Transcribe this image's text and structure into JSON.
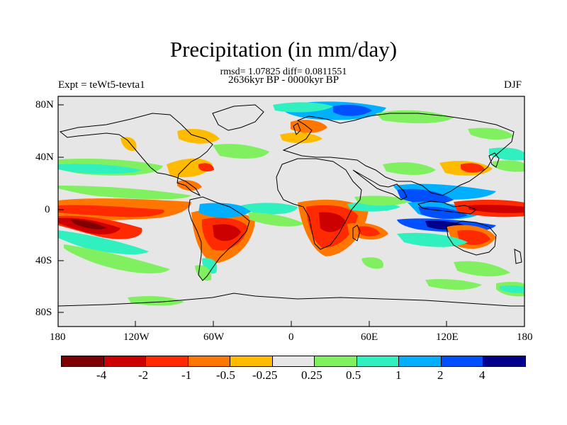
{
  "title": "Precipitation (in mm/day)",
  "stats": "rmsd= 1.07825 diff= 0.0811551",
  "period": "2636kyr BP - 0000kyr BP",
  "experiment": "Expt = teWt5-tevta1",
  "season": "DJF",
  "lat_ticks": [
    "80N",
    "40N",
    "0",
    "40S",
    "80S"
  ],
  "lon_ticks": [
    "180",
    "120W",
    "60W",
    "0",
    "60E",
    "120E",
    "180"
  ],
  "colorbar": {
    "colors": [
      "#7f0000",
      "#cc0000",
      "#ff2a00",
      "#ff7700",
      "#ffbb00",
      "#e6e6e6",
      "#80f060",
      "#30f0c0",
      "#00b0ff",
      "#0050ff",
      "#00008b"
    ],
    "labels": [
      "-4",
      "-2",
      "-1",
      "-0.5",
      "-0.25",
      "0.25",
      "0.5",
      "1",
      "2",
      "4"
    ]
  },
  "map_colors": {
    "background": "#e6e6e6",
    "coast": "#000000"
  }
}
